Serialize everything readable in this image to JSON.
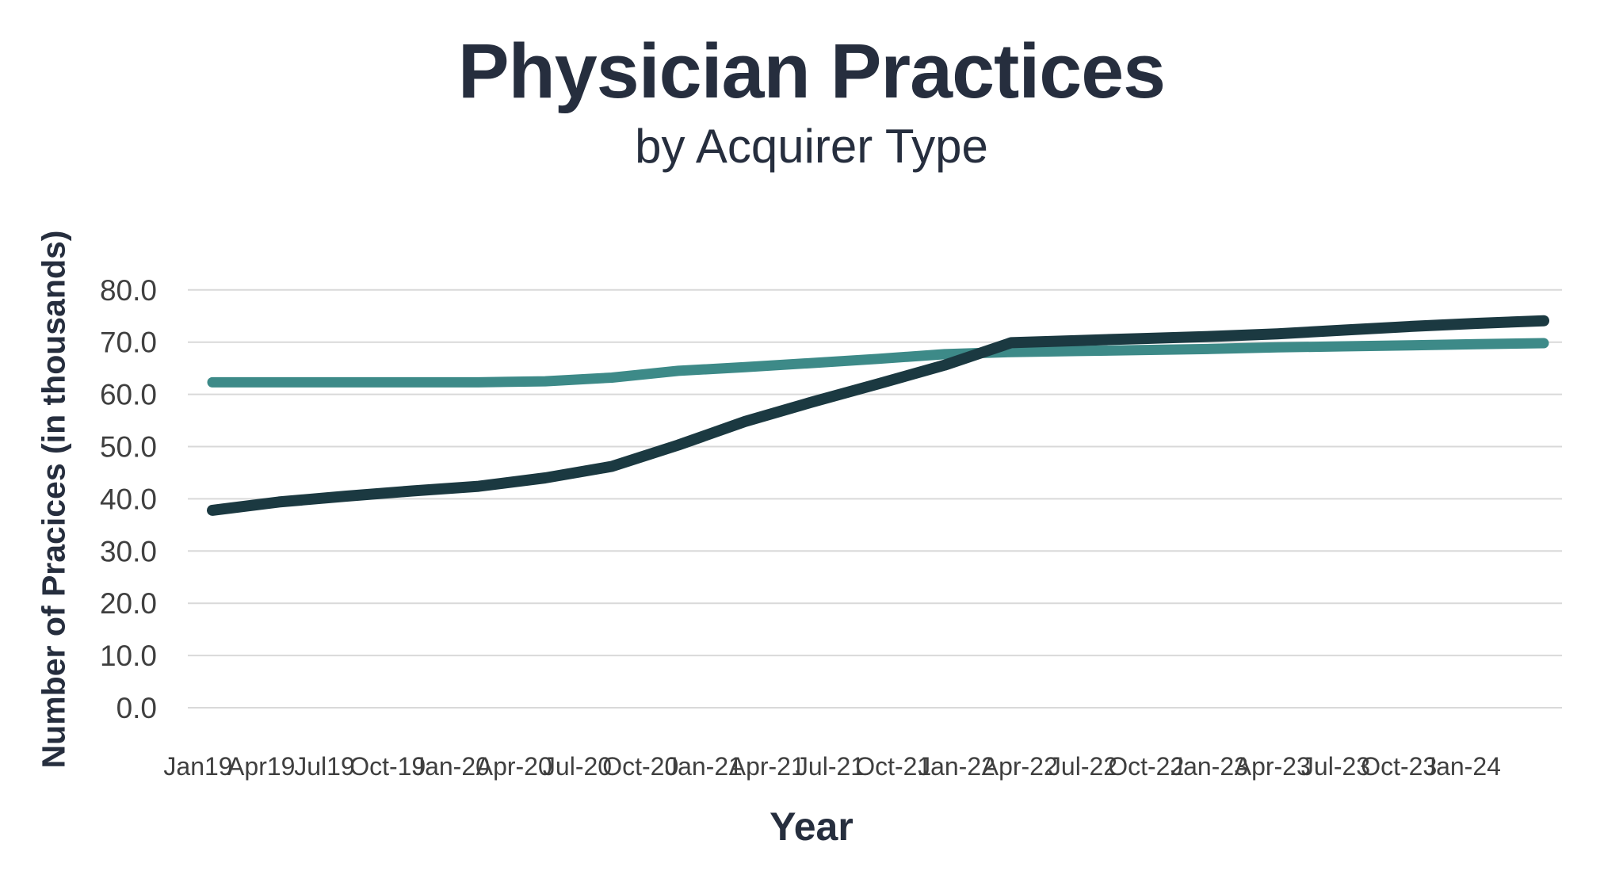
{
  "colors": {
    "background": "#ffffff",
    "title_text": "#262e3e",
    "axis_title_text": "#262e3e",
    "tick_text": "#3f3f3f",
    "gridline": "#d9d9d9",
    "series_teal": "#3d8a88",
    "series_dark": "#1b3941"
  },
  "chart_data": {
    "type": "line",
    "title": "Physician Practices",
    "subtitle": "by Acquirer Type",
    "xlabel": "Year",
    "ylabel": "Number of Pracices (in thousands)",
    "ylim": [
      0.0,
      80.0
    ],
    "grid": "horizontal-gridlines",
    "legend": "none",
    "categories": [
      "Jan19",
      "Apr19",
      "Jul19",
      "Oct-19",
      "Jan-20",
      "Apr-20",
      "Jul-20",
      "Oct-20",
      "Jan-21",
      "Apr-21",
      "Jul-21",
      "Oct-21",
      "Jan-22",
      "Apr-22",
      "Jul-22",
      "Oct-22",
      "Jan-23",
      "Apr-23",
      "Jul-23",
      "Oct-23",
      "Jan-24"
    ],
    "y_ticks": [
      0,
      10,
      20,
      30,
      40,
      50,
      60,
      70,
      80
    ],
    "y_tick_labels": [
      "0.0",
      "10.0",
      "20.0",
      "30.0",
      "40.0",
      "50.0",
      "60.0",
      "70.0",
      "80.0"
    ],
    "series": [
      {
        "id": "teal-line",
        "color": "#3d8a88",
        "values": [
          62.3,
          62.3,
          62.3,
          62.3,
          62.3,
          62.5,
          63.2,
          64.5,
          65.2,
          66.0,
          66.8,
          67.7,
          68.1,
          68.3,
          68.5,
          68.7,
          69.0,
          69.2,
          69.4,
          69.6,
          69.8
        ]
      },
      {
        "id": "dark-line",
        "color": "#1b3941",
        "values": [
          37.8,
          39.4,
          40.5,
          41.5,
          42.4,
          44.0,
          46.2,
          50.3,
          54.8,
          58.5,
          62.0,
          65.6,
          69.9,
          70.3,
          70.7,
          71.1,
          71.6,
          72.3,
          73.0,
          73.6,
          74.1
        ]
      }
    ]
  }
}
